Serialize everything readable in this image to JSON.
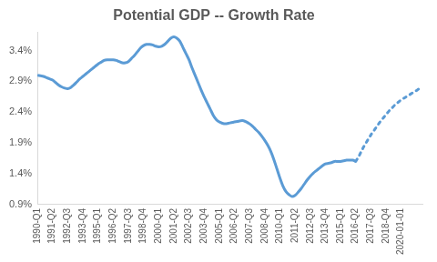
{
  "chart_data": {
    "type": "line",
    "title": "Potential GDP -- Growth Rate",
    "categories": [
      "1990-Q1",
      null,
      null,
      null,
      null,
      "1991-Q2",
      null,
      null,
      null,
      null,
      "1992-Q3",
      null,
      null,
      null,
      null,
      "1993-Q4",
      null,
      null,
      null,
      null,
      "1995-Q1",
      null,
      null,
      null,
      null,
      "1996-Q2",
      null,
      null,
      null,
      null,
      "1997-Q3",
      null,
      null,
      null,
      null,
      "1998-Q4",
      null,
      null,
      null,
      null,
      "2000-Q1",
      null,
      null,
      null,
      null,
      "2001-Q2",
      null,
      null,
      null,
      null,
      "2002-Q3",
      null,
      null,
      null,
      null,
      "2003-Q4",
      null,
      null,
      null,
      null,
      "2005-Q1",
      null,
      null,
      null,
      null,
      "2006-Q2",
      null,
      null,
      null,
      null,
      "2007-Q3",
      null,
      null,
      null,
      null,
      "2008-Q4",
      null,
      null,
      null,
      null,
      "2010-Q1",
      null,
      null,
      null,
      null,
      "2011-Q2",
      null,
      null,
      null,
      null,
      "2012-Q3",
      null,
      null,
      null,
      null,
      "2013-Q4",
      null,
      null,
      null,
      null,
      "2015-Q1",
      null,
      null,
      null,
      null,
      "2016-Q2",
      null,
      null,
      null,
      null,
      "2017-Q3",
      null,
      null,
      null,
      null,
      "2018-Q4",
      null,
      null,
      null,
      null,
      "2020-01-01",
      null,
      null,
      null,
      null,
      null,
      null,
      null
    ],
    "series": [
      {
        "color": "#5b9bd5",
        "line_style": "solid",
        "values": [
          3.0,
          2.99,
          2.98,
          2.96,
          2.94,
          2.92,
          2.88,
          2.84,
          2.81,
          2.79,
          2.78,
          2.8,
          2.84,
          2.89,
          2.94,
          2.98,
          3.02,
          3.06,
          3.1,
          3.14,
          3.18,
          3.21,
          3.24,
          3.25,
          3.25,
          3.25,
          3.24,
          3.22,
          3.2,
          3.2,
          3.22,
          3.27,
          3.32,
          3.38,
          3.44,
          3.48,
          3.5,
          3.5,
          3.49,
          3.47,
          3.46,
          3.47,
          3.5,
          3.55,
          3.6,
          3.62,
          3.6,
          3.55,
          3.45,
          3.35,
          3.25,
          3.12,
          3.0,
          2.88,
          2.76,
          2.65,
          2.55,
          2.45,
          2.35,
          2.28,
          2.24,
          2.22,
          2.21,
          2.22,
          2.23,
          2.24,
          2.25,
          2.26,
          2.26,
          2.24,
          2.21,
          2.17,
          2.12,
          2.07,
          2.01,
          1.94,
          1.86,
          1.76,
          1.63,
          1.48,
          1.33,
          1.2,
          1.11,
          1.06,
          1.03,
          1.05,
          1.1,
          1.16,
          1.23,
          1.3,
          1.36,
          1.41,
          1.45,
          1.49,
          1.53,
          1.56,
          1.57,
          1.58,
          1.6,
          1.6,
          1.6,
          1.61,
          1.62,
          1.62,
          1.62,
          1.6,
          null,
          null,
          null,
          null,
          null,
          null,
          null,
          null,
          null,
          null,
          null,
          null,
          null,
          null,
          null,
          null,
          null,
          null,
          null,
          null,
          null,
          null
        ]
      },
      {
        "color": "#5b9bd5",
        "line_style": "dotted",
        "values": [
          null,
          null,
          null,
          null,
          null,
          null,
          null,
          null,
          null,
          null,
          null,
          null,
          null,
          null,
          null,
          null,
          null,
          null,
          null,
          null,
          null,
          null,
          null,
          null,
          null,
          null,
          null,
          null,
          null,
          null,
          null,
          null,
          null,
          null,
          null,
          null,
          null,
          null,
          null,
          null,
          null,
          null,
          null,
          null,
          null,
          null,
          null,
          null,
          null,
          null,
          null,
          null,
          null,
          null,
          null,
          null,
          null,
          null,
          null,
          null,
          null,
          null,
          null,
          null,
          null,
          null,
          null,
          null,
          null,
          null,
          null,
          null,
          null,
          null,
          null,
          null,
          null,
          null,
          null,
          null,
          null,
          null,
          null,
          null,
          null,
          null,
          null,
          null,
          null,
          null,
          null,
          null,
          null,
          null,
          null,
          null,
          null,
          null,
          null,
          null,
          null,
          null,
          null,
          null,
          null,
          1.6,
          1.68,
          1.78,
          1.87,
          1.95,
          2.03,
          2.1,
          2.17,
          2.24,
          2.3,
          2.36,
          2.42,
          2.47,
          2.52,
          2.56,
          2.6,
          2.63,
          2.66,
          2.69,
          2.72,
          2.75,
          2.78,
          2.8
        ]
      }
    ],
    "ylim": [
      0.9,
      3.7
    ],
    "yticks": [
      {
        "value": 0.9,
        "label": "0.9%"
      },
      {
        "value": 1.4,
        "label": "1.4%"
      },
      {
        "value": 1.9,
        "label": "1.9%"
      },
      {
        "value": 2.4,
        "label": "2.4%"
      },
      {
        "value": 2.9,
        "label": "2.9%"
      },
      {
        "value": 3.4,
        "label": "3.4%"
      }
    ],
    "grid": false
  }
}
